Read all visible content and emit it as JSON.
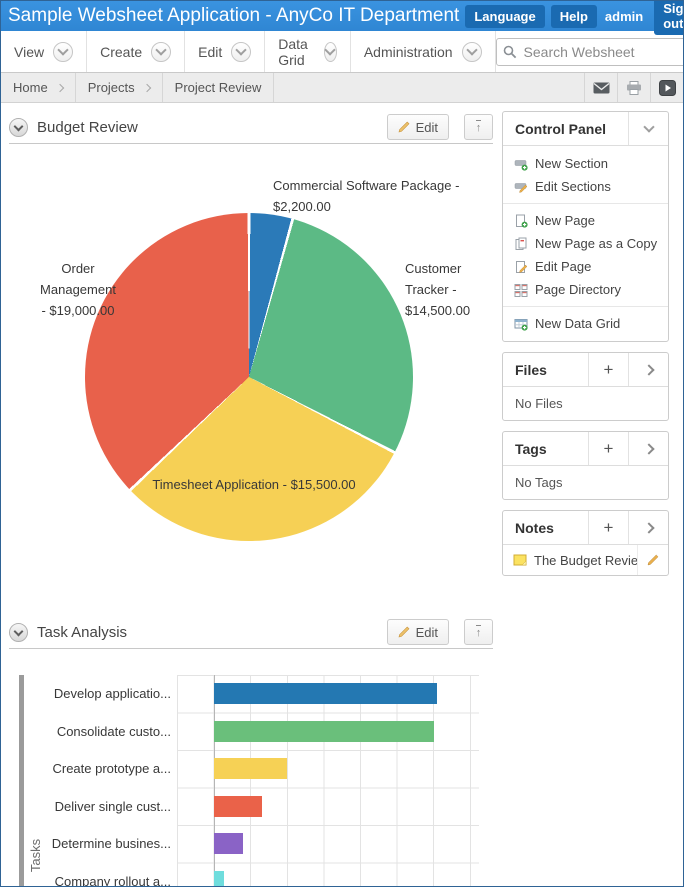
{
  "titlebar": {
    "title": "Sample Websheet Application - AnyCo IT Department",
    "language_label": "Language",
    "help_label": "Help",
    "user_label": "admin",
    "signout_label": "Sign out"
  },
  "menubar": {
    "items": [
      {
        "label": "View"
      },
      {
        "label": "Create"
      },
      {
        "label": "Edit"
      },
      {
        "label": "Data Grid"
      },
      {
        "label": "Administration"
      }
    ],
    "search_placeholder": "Search Websheet"
  },
  "breadcrumb": {
    "items": [
      {
        "label": "Home"
      },
      {
        "label": "Projects"
      },
      {
        "label": "Project Review"
      }
    ]
  },
  "icons": {
    "plus": "+",
    "up_arrow": "↑"
  },
  "budget_section": {
    "title": "Budget Review",
    "edit_label": "Edit"
  },
  "task_section": {
    "title": "Task Analysis",
    "edit_label": "Edit"
  },
  "sidebar": {
    "control_panel": {
      "title": "Control Panel",
      "items": [
        {
          "icon": "new-section-icon",
          "label": "New Section"
        },
        {
          "icon": "edit-sections-icon",
          "label": "Edit Sections"
        },
        {
          "icon": "new-page-icon",
          "label": "New Page"
        },
        {
          "icon": "new-page-copy-icon",
          "label": "New Page as a Copy"
        },
        {
          "icon": "edit-page-icon",
          "label": "Edit Page"
        },
        {
          "icon": "page-directory-icon",
          "label": "Page Directory"
        },
        {
          "icon": "new-data-grid-icon",
          "label": "New Data Grid"
        }
      ]
    },
    "files": {
      "title": "Files",
      "empty_text": "No Files"
    },
    "tags": {
      "title": "Tags",
      "empty_text": "No Tags"
    },
    "notes": {
      "title": "Notes",
      "note_label": "The Budget Revie..."
    }
  },
  "chart_data": [
    {
      "type": "pie",
      "section": "Budget Review",
      "total": 51200,
      "start_angle_deg": 0,
      "direction": "clockwise",
      "legend": "none",
      "labels_on_chart": true,
      "slices": [
        {
          "label": "Commercial Software Package",
          "value": 2200,
          "color": "#2b7ab8"
        },
        {
          "label": "Customer Tracker",
          "value": 14500,
          "color": "#5cba85"
        },
        {
          "label": "Timesheet Application",
          "value": 15500,
          "color": "#f6d055"
        },
        {
          "label": "Order Management",
          "value": 19000,
          "color": "#e8614b"
        }
      ],
      "label_lines": {
        "commercial": [
          "Commercial Software Package -",
          "$2,200.00"
        ],
        "customer": [
          "Customer",
          "Tracker -",
          "$14,500.00"
        ],
        "order": [
          "Order",
          "Management",
          "- $19,000.00"
        ],
        "timesheet": [
          "Timesheet Application - $15,500.00"
        ]
      }
    },
    {
      "type": "bar",
      "orientation": "horizontal",
      "section": "Task Analysis",
      "ylabel": "Tasks",
      "xlabel": "",
      "grid": true,
      "value_axis_visible": false,
      "axis_note": "value-axis tick labels are cut off at the bottom edge of the screenshot; values given in gridline units",
      "categories": [
        "Develop applicatio...",
        "Consolidate custo...",
        "Create prototype a...",
        "Deliver single cust...",
        "Determine busines...",
        "Company rollout a..."
      ],
      "values_axis_units": [
        6.1,
        6.0,
        2.0,
        1.3,
        0.8,
        0.26
      ],
      "colors": [
        "#2478b2",
        "#6abf7b",
        "#f6d155",
        "#ea6249",
        "#8a63c6",
        "#6fdddd"
      ]
    }
  ]
}
